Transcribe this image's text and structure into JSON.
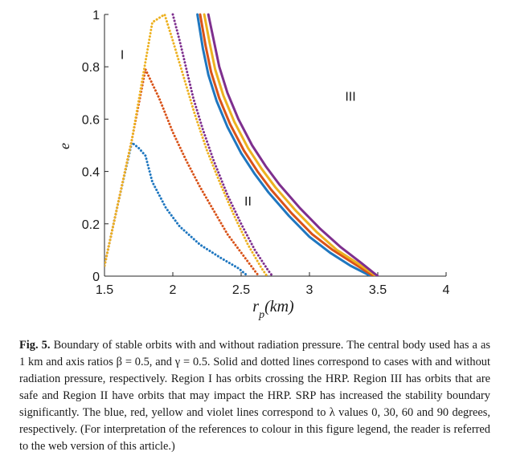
{
  "chart_data": {
    "type": "line",
    "xlabel": "r_p(km)",
    "ylabel": "e",
    "xlim": [
      1.5,
      4
    ],
    "ylim": [
      0,
      1
    ],
    "x_ticks": [
      "1.5",
      "2",
      "2.5",
      "3",
      "3.5",
      "4"
    ],
    "y_ticks": [
      "0",
      "0.2",
      "0.4",
      "0.6",
      "0.8",
      "1"
    ],
    "grid": false,
    "colors": {
      "blue": "#1f77c0",
      "red": "#d95319",
      "yellow": "#edb120",
      "violet": "#7e2f8e"
    },
    "region_labels": [
      {
        "text": "I",
        "x": 1.63,
        "y": 0.83
      },
      {
        "text": "II",
        "x": 2.55,
        "y": 0.27
      },
      {
        "text": "III",
        "x": 3.3,
        "y": 0.67
      }
    ],
    "series": [
      {
        "color": "blue",
        "style": "solid",
        "x": [
          2.18,
          2.22,
          2.26,
          2.32,
          2.4,
          2.5,
          2.6,
          2.7,
          2.85,
          3.0,
          3.15,
          3.3,
          3.45
        ],
        "y": [
          1.0,
          0.87,
          0.77,
          0.67,
          0.57,
          0.47,
          0.39,
          0.32,
          0.23,
          0.15,
          0.09,
          0.04,
          0.0
        ]
      },
      {
        "color": "red",
        "style": "solid",
        "x": [
          2.2,
          2.24,
          2.28,
          2.34,
          2.42,
          2.52,
          2.62,
          2.72,
          2.87,
          3.02,
          3.17,
          3.32,
          3.47
        ],
        "y": [
          1.0,
          0.88,
          0.78,
          0.68,
          0.58,
          0.48,
          0.4,
          0.33,
          0.24,
          0.16,
          0.1,
          0.05,
          0.0
        ]
      },
      {
        "color": "yellow",
        "style": "solid",
        "x": [
          2.23,
          2.27,
          2.31,
          2.37,
          2.45,
          2.55,
          2.65,
          2.75,
          2.9,
          3.05,
          3.2,
          3.35,
          3.49
        ],
        "y": [
          1.0,
          0.89,
          0.79,
          0.69,
          0.59,
          0.49,
          0.41,
          0.34,
          0.25,
          0.17,
          0.1,
          0.05,
          0.0
        ]
      },
      {
        "color": "violet",
        "style": "solid",
        "x": [
          2.26,
          2.3,
          2.34,
          2.4,
          2.48,
          2.58,
          2.68,
          2.78,
          2.93,
          3.08,
          3.23,
          3.38,
          3.5
        ],
        "y": [
          1.0,
          0.9,
          0.8,
          0.7,
          0.6,
          0.5,
          0.42,
          0.35,
          0.26,
          0.18,
          0.11,
          0.05,
          0.0
        ]
      },
      {
        "color": "blue",
        "style": "dotted",
        "x": [
          1.5,
          1.6,
          1.7,
          1.75,
          1.8,
          1.85,
          1.95,
          2.05,
          2.2,
          2.35,
          2.48,
          2.55
        ],
        "y": [
          0.04,
          0.28,
          0.51,
          0.49,
          0.46,
          0.36,
          0.26,
          0.19,
          0.12,
          0.07,
          0.03,
          0.0
        ]
      },
      {
        "color": "red",
        "style": "dotted",
        "x": [
          1.5,
          1.6,
          1.7,
          1.8,
          1.9,
          2.0,
          2.1,
          2.2,
          2.3,
          2.4,
          2.5,
          2.6,
          2.63
        ],
        "y": [
          0.04,
          0.28,
          0.52,
          0.79,
          0.68,
          0.55,
          0.44,
          0.34,
          0.25,
          0.16,
          0.09,
          0.02,
          0.0
        ]
      },
      {
        "color": "yellow",
        "style": "dotted",
        "x": [
          1.5,
          1.6,
          1.7,
          1.77,
          1.85,
          1.94,
          2.0,
          2.08,
          2.16,
          2.25,
          2.35,
          2.45,
          2.55,
          2.65,
          2.69
        ],
        "y": [
          0.04,
          0.28,
          0.52,
          0.73,
          0.97,
          1.0,
          0.9,
          0.76,
          0.62,
          0.48,
          0.35,
          0.23,
          0.12,
          0.03,
          0.0
        ]
      },
      {
        "color": "violet",
        "style": "dotted",
        "x": [
          2.0,
          2.05,
          2.1,
          2.15,
          2.22,
          2.3,
          2.4,
          2.5,
          2.6,
          2.7,
          2.73
        ],
        "y": [
          1.0,
          0.9,
          0.79,
          0.68,
          0.56,
          0.44,
          0.31,
          0.2,
          0.1,
          0.02,
          0.0
        ]
      }
    ]
  },
  "caption": {
    "label": "Fig. 5.",
    "text": "Boundary of stable orbits with and without radiation pressure. The central body used has a as 1 km and axis ratios β = 0.5, and γ = 0.5. Solid and dotted lines correspond to cases with and without radiation pressure, respectively. Region I has orbits crossing the HRP. Region III has orbits that are safe and Region II have orbits that may impact the HRP. SRP has increased the stability boundary significantly. The blue, red, yellow and violet lines correspond to λ values 0, 30, 60 and 90 degrees, respectively. (For interpretation of the references to colour in this figure legend, the reader is referred to the web version of this article.)"
  }
}
